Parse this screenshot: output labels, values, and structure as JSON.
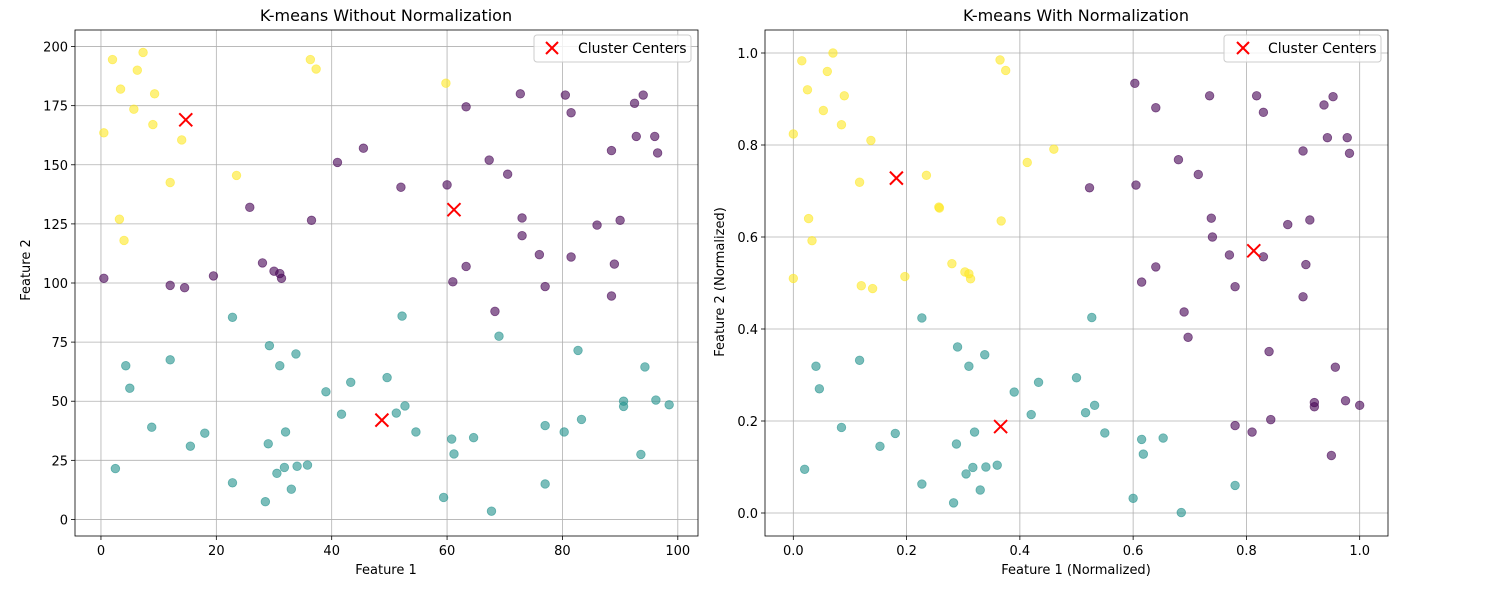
{
  "legend_label": "Cluster Centers",
  "colors": {
    "cluster_purple": "#440154",
    "cluster_teal": "#21918c",
    "cluster_yellow": "#fde725",
    "center_marker": "#ff0000",
    "grid": "#b0b0b0"
  },
  "chart_data": [
    {
      "type": "scatter",
      "title": "K-means Without Normalization",
      "xlabel": "Feature 1",
      "ylabel": "Feature 2",
      "xlim": [
        -4.5,
        103.5
      ],
      "ylim": [
        -7,
        207
      ],
      "xticks": [
        0,
        20,
        40,
        60,
        80,
        100
      ],
      "yticks": [
        0,
        25,
        50,
        75,
        100,
        125,
        150,
        175,
        200
      ],
      "grid": true,
      "legend": "top-right",
      "alpha": 0.6,
      "clusters": [
        {
          "color": "#440154",
          "points": [
            [
              0.5,
              102
            ],
            [
              12,
              99
            ],
            [
              14.5,
              98
            ],
            [
              19.5,
              103
            ],
            [
              25.8,
              132
            ],
            [
              28,
              108.5
            ],
            [
              30,
              105
            ],
            [
              31,
              104
            ],
            [
              31.3,
              102
            ],
            [
              36.5,
              126.5
            ],
            [
              41,
              151
            ],
            [
              45.5,
              157
            ],
            [
              52,
              140.5
            ],
            [
              60,
              141.5
            ],
            [
              61,
              100.5
            ],
            [
              63.3,
              174.5
            ],
            [
              63.3,
              107
            ],
            [
              67.3,
              152
            ],
            [
              68.3,
              88
            ],
            [
              70.5,
              146
            ],
            [
              72.7,
              180
            ],
            [
              73,
              127.5
            ],
            [
              73,
              120
            ],
            [
              76,
              112
            ],
            [
              77,
              98.5
            ],
            [
              80.5,
              179.5
            ],
            [
              81.5,
              172
            ],
            [
              81.5,
              111
            ],
            [
              86,
              124.5
            ],
            [
              88.5,
              156
            ],
            [
              88.5,
              94.5
            ],
            [
              89,
              108
            ],
            [
              90,
              126.5
            ],
            [
              92.5,
              176
            ],
            [
              92.8,
              162
            ],
            [
              94,
              179.5
            ],
            [
              96,
              162
            ],
            [
              96.5,
              155
            ]
          ]
        },
        {
          "color": "#21918c",
          "points": [
            [
              2.5,
              21.5
            ],
            [
              4.3,
              65
            ],
            [
              5,
              55.5
            ],
            [
              8.8,
              39
            ],
            [
              12,
              67.5
            ],
            [
              15.5,
              31
            ],
            [
              18,
              36.5
            ],
            [
              22.8,
              85.5
            ],
            [
              22.8,
              15.5
            ],
            [
              28.5,
              7.5
            ],
            [
              29,
              32
            ],
            [
              29.2,
              73.5
            ],
            [
              30.5,
              19.5
            ],
            [
              31,
              65
            ],
            [
              31.8,
              22
            ],
            [
              32,
              37
            ],
            [
              33,
              12.8
            ],
            [
              33.8,
              70
            ],
            [
              34,
              22.5
            ],
            [
              35.8,
              23
            ],
            [
              39,
              54
            ],
            [
              41.7,
              44.5
            ],
            [
              43.3,
              58
            ],
            [
              49.6,
              60
            ],
            [
              51.2,
              45
            ],
            [
              52.2,
              86
            ],
            [
              52.7,
              48
            ],
            [
              54.6,
              37
            ],
            [
              59.4,
              9.3
            ],
            [
              60.8,
              34
            ],
            [
              61.2,
              27.7
            ],
            [
              64.6,
              34.6
            ],
            [
              67.7,
              3.5
            ],
            [
              69,
              77.5
            ],
            [
              77,
              39.7
            ],
            [
              77,
              15
            ],
            [
              80.3,
              37
            ],
            [
              82.7,
              71.5
            ],
            [
              83.3,
              42.3
            ],
            [
              90.6,
              50
            ],
            [
              90.6,
              47.8
            ],
            [
              93.6,
              27.5
            ],
            [
              94.3,
              64.5
            ],
            [
              96.2,
              50.5
            ],
            [
              98.5,
              48.5
            ]
          ]
        },
        {
          "color": "#fde725",
          "points": [
            [
              0.5,
              163.5
            ],
            [
              2,
              194.5
            ],
            [
              3.2,
              127
            ],
            [
              3.4,
              182
            ],
            [
              4,
              118
            ],
            [
              5.7,
              173.5
            ],
            [
              6.3,
              190
            ],
            [
              7.3,
              197.5
            ],
            [
              9,
              167
            ],
            [
              9.3,
              180
            ],
            [
              12,
              142.5
            ],
            [
              14,
              160.5
            ],
            [
              23.5,
              145.5
            ],
            [
              36.3,
              194.5
            ],
            [
              37.3,
              190.5
            ],
            [
              59.8,
              184.5
            ]
          ]
        }
      ],
      "centers": [
        [
          14.7,
          169
        ],
        [
          61.2,
          131
        ],
        [
          48.7,
          42
        ]
      ]
    },
    {
      "type": "scatter",
      "title": "K-means With Normalization",
      "xlabel": "Feature 1 (Normalized)",
      "ylabel": "Feature 2 (Normalized)",
      "xlim": [
        -0.05,
        1.05
      ],
      "ylim": [
        -0.05,
        1.05
      ],
      "xticks": [
        0.0,
        0.2,
        0.4,
        0.6,
        0.8,
        1.0
      ],
      "yticks": [
        0.0,
        0.2,
        0.4,
        0.6,
        0.8,
        1.0
      ],
      "grid": true,
      "legend": "top-right",
      "alpha": 0.6,
      "clusters": [
        {
          "color": "#440154",
          "points": [
            [
              0.523,
              0.707
            ],
            [
              0.603,
              0.934
            ],
            [
              0.605,
              0.713
            ],
            [
              0.615,
              0.502
            ],
            [
              0.64,
              0.881
            ],
            [
              0.64,
              0.535
            ],
            [
              0.68,
              0.768
            ],
            [
              0.69,
              0.437
            ],
            [
              0.697,
              0.382
            ],
            [
              0.715,
              0.736
            ],
            [
              0.735,
              0.907
            ],
            [
              0.738,
              0.641
            ],
            [
              0.74,
              0.6
            ],
            [
              0.77,
              0.561
            ],
            [
              0.78,
              0.492
            ],
            [
              0.78,
              0.19
            ],
            [
              0.81,
              0.176
            ],
            [
              0.818,
              0.907
            ],
            [
              0.83,
              0.871
            ],
            [
              0.83,
              0.557
            ],
            [
              0.84,
              0.351
            ],
            [
              0.843,
              0.203
            ],
            [
              0.873,
              0.627
            ],
            [
              0.9,
              0.787
            ],
            [
              0.9,
              0.47
            ],
            [
              0.905,
              0.54
            ],
            [
              0.912,
              0.637
            ],
            [
              0.92,
              0.24
            ],
            [
              0.92,
              0.231
            ],
            [
              0.937,
              0.887
            ],
            [
              0.943,
              0.816
            ],
            [
              0.95,
              0.125
            ],
            [
              0.953,
              0.905
            ],
            [
              0.957,
              0.317
            ],
            [
              0.975,
              0.244
            ],
            [
              0.978,
              0.816
            ],
            [
              0.982,
              0.782
            ],
            [
              1.0,
              0.234
            ]
          ]
        },
        {
          "color": "#21918c",
          "points": [
            [
              0.02,
              0.095
            ],
            [
              0.04,
              0.319
            ],
            [
              0.046,
              0.27
            ],
            [
              0.085,
              0.186
            ],
            [
              0.117,
              0.332
            ],
            [
              0.153,
              0.145
            ],
            [
              0.18,
              0.173
            ],
            [
              0.227,
              0.424
            ],
            [
              0.227,
              0.063
            ],
            [
              0.283,
              0.022
            ],
            [
              0.288,
              0.15
            ],
            [
              0.29,
              0.361
            ],
            [
              0.305,
              0.085
            ],
            [
              0.31,
              0.319
            ],
            [
              0.317,
              0.099
            ],
            [
              0.32,
              0.176
            ],
            [
              0.33,
              0.05
            ],
            [
              0.338,
              0.344
            ],
            [
              0.34,
              0.1
            ],
            [
              0.36,
              0.104
            ],
            [
              0.39,
              0.263
            ],
            [
              0.42,
              0.214
            ],
            [
              0.433,
              0.284
            ],
            [
              0.5,
              0.294
            ],
            [
              0.516,
              0.218
            ],
            [
              0.527,
              0.425
            ],
            [
              0.532,
              0.234
            ],
            [
              0.55,
              0.174
            ],
            [
              0.6,
              0.032
            ],
            [
              0.615,
              0.16
            ],
            [
              0.618,
              0.128
            ],
            [
              0.653,
              0.163
            ],
            [
              0.685,
              0.001
            ],
            [
              0.78,
              0.06
            ]
          ]
        },
        {
          "color": "#fde725",
          "points": [
            [
              0.0,
              0.824
            ],
            [
              0.0,
              0.51
            ],
            [
              0.015,
              0.983
            ],
            [
              0.025,
              0.92
            ],
            [
              0.027,
              0.64
            ],
            [
              0.033,
              0.592
            ],
            [
              0.053,
              0.875
            ],
            [
              0.06,
              0.96
            ],
            [
              0.07,
              1.0
            ],
            [
              0.085,
              0.844
            ],
            [
              0.09,
              0.907
            ],
            [
              0.117,
              0.719
            ],
            [
              0.12,
              0.494
            ],
            [
              0.137,
              0.81
            ],
            [
              0.14,
              0.488
            ],
            [
              0.197,
              0.514
            ],
            [
              0.235,
              0.734
            ],
            [
              0.257,
              0.665
            ],
            [
              0.258,
              0.663
            ],
            [
              0.28,
              0.542
            ],
            [
              0.303,
              0.524
            ],
            [
              0.31,
              0.52
            ],
            [
              0.313,
              0.509
            ],
            [
              0.365,
              0.985
            ],
            [
              0.367,
              0.635
            ],
            [
              0.375,
              0.962
            ],
            [
              0.413,
              0.762
            ],
            [
              0.46,
              0.791
            ]
          ]
        }
      ],
      "centers": [
        [
          0.182,
          0.728
        ],
        [
          0.813,
          0.57
        ],
        [
          0.366,
          0.188
        ]
      ]
    }
  ]
}
